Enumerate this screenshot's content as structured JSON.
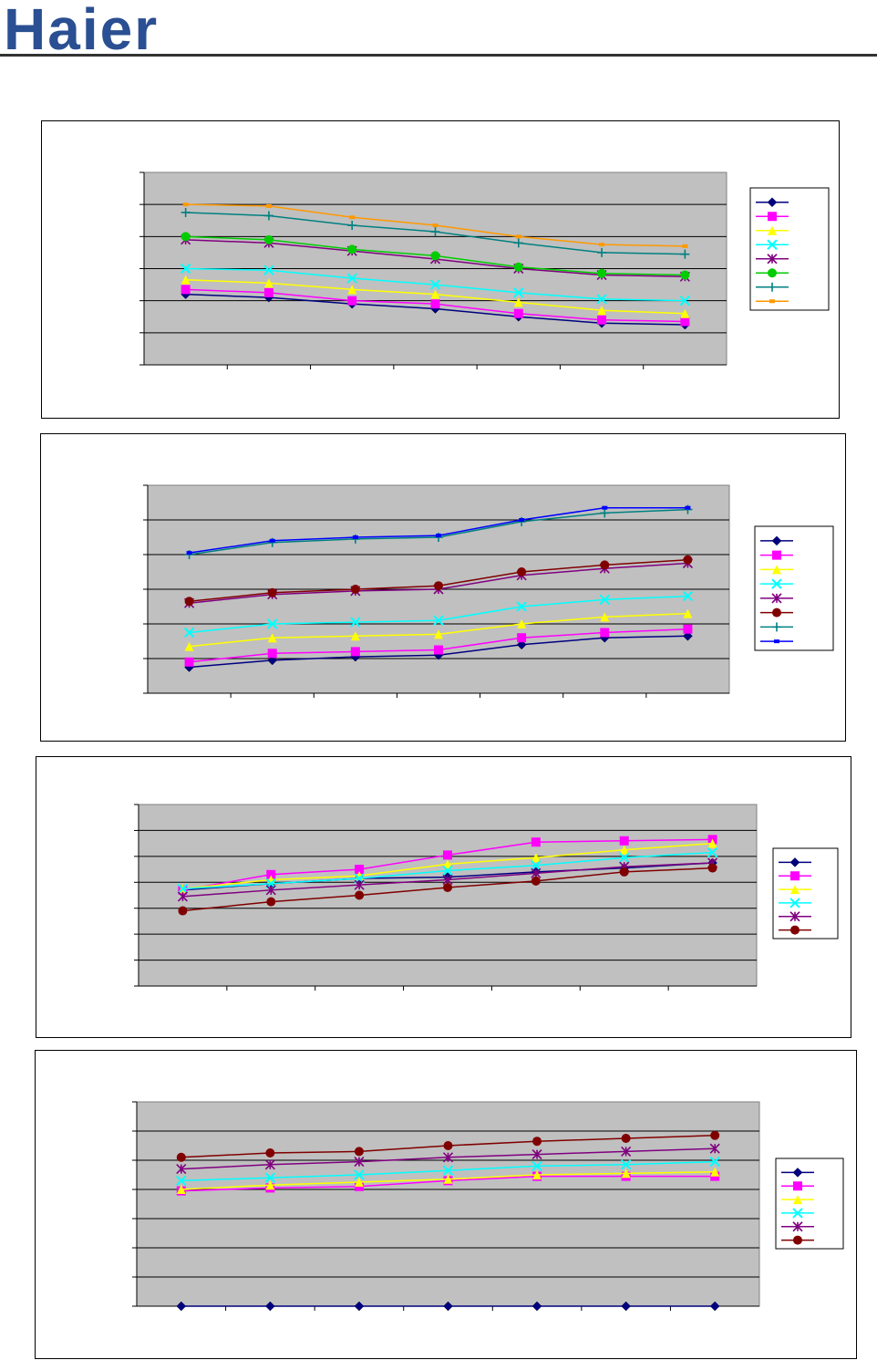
{
  "header": {
    "brand": "Haier"
  },
  "colors": {
    "plot_bg": "#c0c0c0",
    "series": [
      "#000080",
      "#ff00ff",
      "#ffff00",
      "#00ffff",
      "#800080",
      "#800000",
      "#008080",
      "#0000ff"
    ],
    "lines_chart1": [
      "#000080",
      "#ff00ff",
      "#ffff00",
      "#00ffff",
      "#800080",
      "#00cc00",
      "#008080",
      "#ff9900"
    ]
  },
  "chart_data": [
    {
      "type": "line",
      "ylim": [
        0,
        6
      ],
      "x": [
        1,
        2,
        3,
        4,
        5,
        6,
        7
      ],
      "grid": true,
      "legend": "right",
      "series": [
        {
          "values": [
            2.2,
            2.1,
            1.9,
            1.75,
            1.5,
            1.3,
            1.25
          ]
        },
        {
          "values": [
            2.35,
            2.25,
            2.0,
            1.9,
            1.6,
            1.4,
            1.35
          ]
        },
        {
          "values": [
            2.65,
            2.55,
            2.35,
            2.2,
            1.95,
            1.7,
            1.6
          ]
        },
        {
          "values": [
            3.0,
            2.95,
            2.7,
            2.5,
            2.25,
            2.05,
            2.0
          ]
        },
        {
          "values": [
            3.9,
            3.8,
            3.55,
            3.3,
            3.0,
            2.8,
            2.75
          ]
        },
        {
          "values": [
            4.0,
            3.9,
            3.6,
            3.4,
            3.05,
            2.85,
            2.8
          ]
        },
        {
          "values": [
            4.75,
            4.65,
            4.35,
            4.15,
            3.8,
            3.5,
            3.45
          ]
        },
        {
          "values": [
            5.0,
            4.95,
            4.6,
            4.35,
            4.0,
            3.75,
            3.7
          ]
        }
      ]
    },
    {
      "type": "line",
      "ylim": [
        0,
        6
      ],
      "x": [
        1,
        2,
        3,
        4,
        5,
        6,
        7
      ],
      "grid": true,
      "legend": "right",
      "series": [
        {
          "values": [
            0.75,
            0.95,
            1.05,
            1.1,
            1.4,
            1.6,
            1.65
          ]
        },
        {
          "values": [
            0.9,
            1.15,
            1.2,
            1.25,
            1.6,
            1.75,
            1.85
          ]
        },
        {
          "values": [
            1.35,
            1.6,
            1.65,
            1.7,
            2.0,
            2.2,
            2.3
          ]
        },
        {
          "values": [
            1.75,
            2.0,
            2.05,
            2.1,
            2.5,
            2.7,
            2.8
          ]
        },
        {
          "values": [
            2.6,
            2.85,
            2.95,
            3.0,
            3.4,
            3.6,
            3.75
          ]
        },
        {
          "values": [
            2.65,
            2.9,
            3.0,
            3.1,
            3.5,
            3.7,
            3.85
          ]
        },
        {
          "values": [
            4.0,
            4.35,
            4.45,
            4.5,
            4.95,
            5.2,
            5.3
          ]
        },
        {
          "values": [
            4.05,
            4.4,
            4.5,
            4.55,
            5.0,
            5.35,
            5.35
          ]
        }
      ]
    },
    {
      "type": "line",
      "ylim": [
        0,
        7
      ],
      "x": [
        1,
        2,
        3,
        4,
        5,
        6,
        7
      ],
      "grid": true,
      "legend": "right",
      "series": [
        {
          "values": [
            3.7,
            3.95,
            4.15,
            4.2,
            4.4,
            4.55,
            4.75
          ]
        },
        {
          "values": [
            3.7,
            4.3,
            4.5,
            5.05,
            5.55,
            5.6,
            5.65
          ]
        },
        {
          "values": [
            3.75,
            4.1,
            4.25,
            4.7,
            4.95,
            5.25,
            5.5
          ]
        },
        {
          "values": [
            3.75,
            3.95,
            4.15,
            4.45,
            4.65,
            4.95,
            5.15
          ]
        },
        {
          "values": [
            3.45,
            3.7,
            3.9,
            4.1,
            4.35,
            4.6,
            4.75
          ]
        },
        {
          "values": [
            2.9,
            3.25,
            3.5,
            3.8,
            4.05,
            4.4,
            4.55
          ]
        }
      ]
    },
    {
      "type": "line",
      "ylim": [
        0,
        7
      ],
      "x": [
        1,
        2,
        3,
        4,
        5,
        6,
        7
      ],
      "grid": true,
      "legend": "right",
      "series": [
        {
          "values": [
            0,
            0,
            0,
            0,
            0,
            0,
            0
          ]
        },
        {
          "values": [
            3.95,
            4.05,
            4.1,
            4.3,
            4.45,
            4.45,
            4.45
          ]
        },
        {
          "values": [
            4.0,
            4.15,
            4.25,
            4.35,
            4.5,
            4.55,
            4.6
          ]
        },
        {
          "values": [
            4.3,
            4.4,
            4.5,
            4.65,
            4.8,
            4.85,
            4.95
          ]
        },
        {
          "values": [
            4.7,
            4.85,
            4.95,
            5.1,
            5.2,
            5.3,
            5.4
          ]
        },
        {
          "values": [
            5.1,
            5.25,
            5.3,
            5.5,
            5.65,
            5.75,
            5.85
          ]
        }
      ]
    }
  ]
}
